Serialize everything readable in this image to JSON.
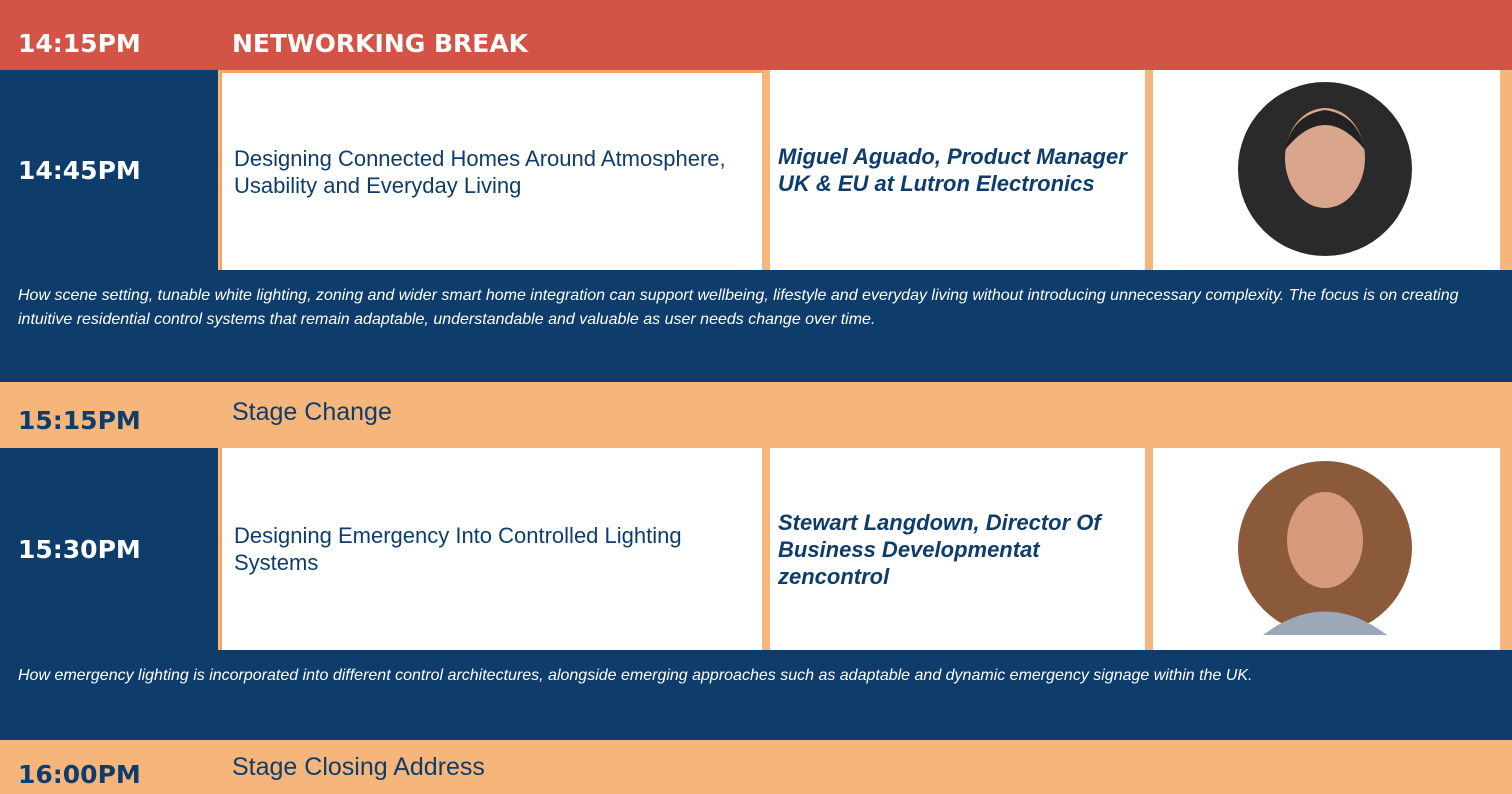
{
  "schedule": [
    {
      "time": "14:15PM",
      "title": "NETWORKING BREAK"
    },
    {
      "time": "14:45PM",
      "title": "Designing Connected Homes Around Atmosphere, Usability and Everyday Living",
      "speaker": "Miguel Aguado, Product Manager UK & EU at Lutron Electronics",
      "description": "How scene setting, tunable white lighting, zoning and wider smart home integration can support wellbeing, lifestyle and everyday living without introducing unnecessary complexity. The focus is on creating intuitive residential control systems that remain adaptable, understandable and valuable as user needs change over time."
    },
    {
      "time": "15:15PM",
      "title": "Stage Change"
    },
    {
      "time": "15:30PM",
      "title": "Designing Emergency Into Controlled Lighting Systems",
      "speaker": "Stewart Langdown, Director Of Business Developmentat zencontrol",
      "description": "How emergency lighting is incorporated into different control architectures, alongside emerging approaches such as adaptable and dynamic emergency signage within the UK."
    },
    {
      "time": "16:00PM",
      "title": "Stage Closing Address"
    }
  ]
}
